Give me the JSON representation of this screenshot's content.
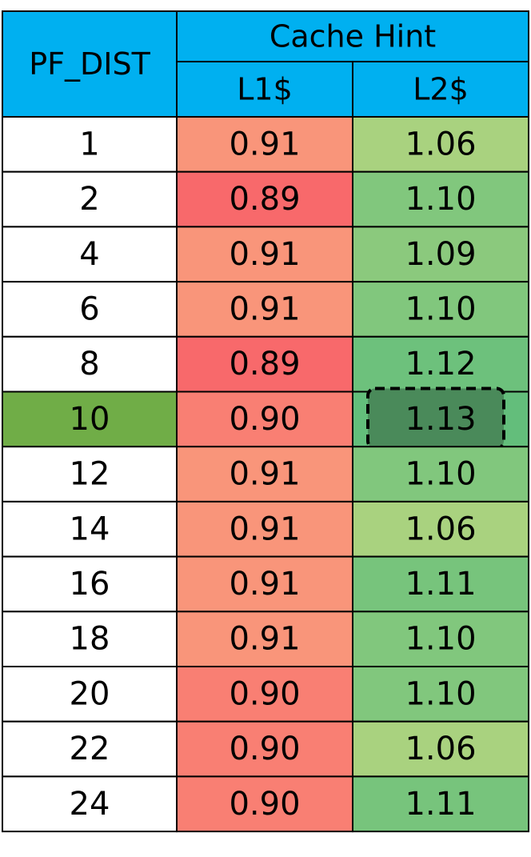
{
  "chart_data": {
    "type": "table",
    "header": {
      "row_label": "PF_DIST",
      "group_label": "Cache Hint",
      "columns": [
        "L1$",
        "L2$"
      ]
    },
    "rows": [
      {
        "pf_dist": "1",
        "l1": "0.91",
        "l2": "1.06"
      },
      {
        "pf_dist": "2",
        "l1": "0.89",
        "l2": "1.10"
      },
      {
        "pf_dist": "4",
        "l1": "0.91",
        "l2": "1.09"
      },
      {
        "pf_dist": "6",
        "l1": "0.91",
        "l2": "1.10"
      },
      {
        "pf_dist": "8",
        "l1": "0.89",
        "l2": "1.12"
      },
      {
        "pf_dist": "10",
        "l1": "0.90",
        "l2": "1.13"
      },
      {
        "pf_dist": "12",
        "l1": "0.91",
        "l2": "1.10"
      },
      {
        "pf_dist": "14",
        "l1": "0.91",
        "l2": "1.06"
      },
      {
        "pf_dist": "16",
        "l1": "0.91",
        "l2": "1.11"
      },
      {
        "pf_dist": "18",
        "l1": "0.91",
        "l2": "1.10"
      },
      {
        "pf_dist": "20",
        "l1": "0.90",
        "l2": "1.10"
      },
      {
        "pf_dist": "22",
        "l1": "0.90",
        "l2": "1.06"
      },
      {
        "pf_dist": "24",
        "l1": "0.90",
        "l2": "1.11"
      }
    ],
    "highlighted_row": "10",
    "highlighted_cell": {
      "pf_dist": "10",
      "column": "L2$"
    }
  },
  "colors": {
    "header_bg": "#00b0f0",
    "highlight_row_bg": "#70ad47",
    "highlight_cell_bg": "#4a8a5a",
    "l1_low": "#f8696b",
    "l1_high": "#f9957a",
    "l2_low": "#a9d27f",
    "l2_high": "#63be7b",
    "grid": "#000000"
  }
}
